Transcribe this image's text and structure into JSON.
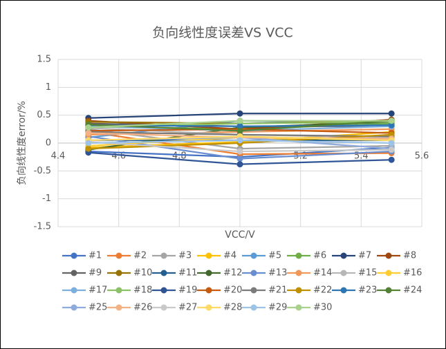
{
  "chart_data": {
    "type": "line",
    "title": "负向线性度误差VS VCC",
    "x_label": "VCC/V",
    "y_label": "负向线性度error/%",
    "x": [
      4.5,
      5,
      5.5
    ],
    "xlim": [
      4.4,
      5.6
    ],
    "xticks": [
      4.4,
      4.6,
      4.8,
      5,
      5.2,
      5.4,
      5.6
    ],
    "ylim": [
      -1.5,
      1.5
    ],
    "yticks": [
      -1.5,
      -1,
      -0.5,
      0,
      0.5,
      1,
      1.5
    ],
    "grid": true,
    "series": [
      {
        "name": "#1",
        "color": "#4472C4",
        "values": [
          -0.15,
          -0.25,
          -0.08
        ]
      },
      {
        "name": "#2",
        "color": "#ED7D31",
        "values": [
          0.2,
          -0.2,
          -0.18
        ]
      },
      {
        "name": "#3",
        "color": "#A5A5A5",
        "values": [
          0.25,
          -0.1,
          -0.05
        ]
      },
      {
        "name": "#4",
        "color": "#FFC000",
        "values": [
          -0.08,
          0.02,
          0.2
        ]
      },
      {
        "name": "#5",
        "color": "#5B9BD5",
        "values": [
          0.1,
          0.4,
          0.35
        ]
      },
      {
        "name": "#6",
        "color": "#70AD47",
        "values": [
          0.3,
          0.25,
          0.35
        ]
      },
      {
        "name": "#7",
        "color": "#264478",
        "values": [
          0.45,
          0.53,
          0.53
        ]
      },
      {
        "name": "#8",
        "color": "#9E480E",
        "values": [
          0.4,
          0.25,
          0.42
        ]
      },
      {
        "name": "#9",
        "color": "#636363",
        "values": [
          0.35,
          0.3,
          0.3
        ]
      },
      {
        "name": "#10",
        "color": "#997300",
        "values": [
          0.38,
          0.35,
          0.4
        ]
      },
      {
        "name": "#11",
        "color": "#255E91",
        "values": [
          0.05,
          0.05,
          0.05
        ]
      },
      {
        "name": "#12",
        "color": "#43682B",
        "values": [
          -0.12,
          0.28,
          0.38
        ]
      },
      {
        "name": "#13",
        "color": "#698ED0",
        "values": [
          0.12,
          -0.28,
          -0.15
        ]
      },
      {
        "name": "#14",
        "color": "#F1975A",
        "values": [
          0.15,
          0.2,
          0.25
        ]
      },
      {
        "name": "#15",
        "color": "#B7B7B7",
        "values": [
          0.27,
          0.15,
          0.1
        ]
      },
      {
        "name": "#16",
        "color": "#FFCD33",
        "values": [
          -0.05,
          0.1,
          0.05
        ]
      },
      {
        "name": "#17",
        "color": "#7CAFDD",
        "values": [
          0.3,
          0.22,
          0.3
        ]
      },
      {
        "name": "#18",
        "color": "#8CC168",
        "values": [
          0.28,
          0.35,
          0.38
        ]
      },
      {
        "name": "#19",
        "color": "#2F5597",
        "values": [
          -0.17,
          -0.38,
          -0.3
        ]
      },
      {
        "name": "#20",
        "color": "#C55A11",
        "values": [
          0.22,
          0.25,
          0.18
        ]
      },
      {
        "name": "#21",
        "color": "#7B7B7B",
        "values": [
          0.2,
          0.15,
          0.12
        ]
      },
      {
        "name": "#22",
        "color": "#BF9000",
        "values": [
          -0.1,
          0,
          0.15
        ]
      },
      {
        "name": "#23",
        "color": "#2E75B6",
        "values": [
          0.32,
          0.3,
          0.32
        ]
      },
      {
        "name": "#24",
        "color": "#548235",
        "values": [
          0.33,
          0.22,
          0.4
        ]
      },
      {
        "name": "#25",
        "color": "#8FAADC",
        "values": [
          0.05,
          0.1,
          -0.1
        ]
      },
      {
        "name": "#26",
        "color": "#F4B183",
        "values": [
          0.18,
          0.1,
          0.08
        ]
      },
      {
        "name": "#27",
        "color": "#C9C9C9",
        "values": [
          0.02,
          -0.15,
          -0.12
        ]
      },
      {
        "name": "#28",
        "color": "#FFD966",
        "values": [
          0.05,
          0.12,
          0.05
        ]
      },
      {
        "name": "#29",
        "color": "#9DC3E6",
        "values": [
          0,
          0.05,
          0
        ]
      },
      {
        "name": "#30",
        "color": "#A9D18E",
        "values": [
          0.28,
          0.4,
          0.4
        ]
      }
    ]
  }
}
